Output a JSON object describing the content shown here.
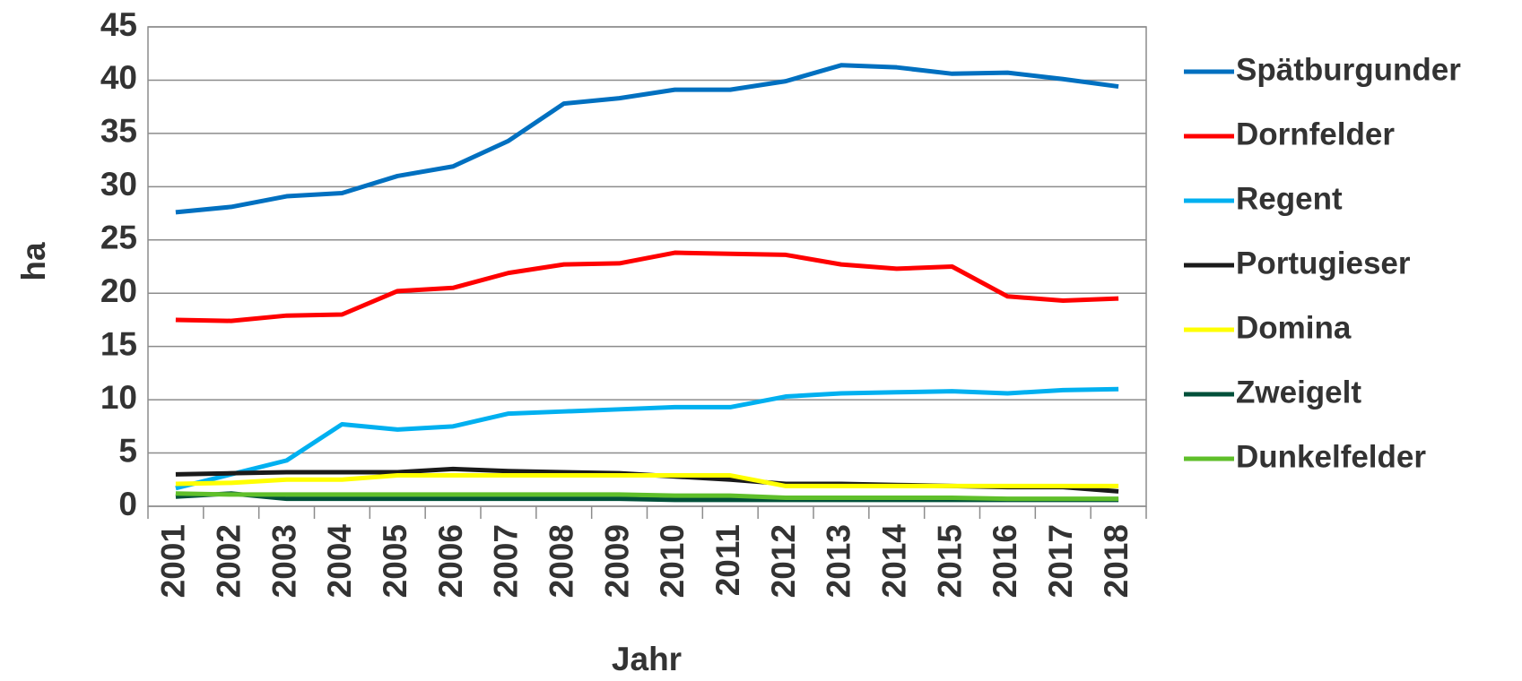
{
  "chart_data": {
    "type": "line",
    "x_label": "Jahr",
    "y_label": "ha",
    "categories": [
      "2001",
      "2002",
      "2003",
      "2004",
      "2005",
      "2006",
      "2007",
      "2008",
      "2009",
      "2010",
      "2011",
      "2012",
      "2013",
      "2014",
      "2015",
      "2016",
      "2017",
      "2018"
    ],
    "series": [
      {
        "name": "Spätburgunder",
        "color": "#0070c0",
        "values": [
          27.6,
          28.1,
          29.1,
          29.4,
          31,
          31.9,
          34.3,
          37.8,
          38.3,
          39.1,
          39.1,
          39.9,
          41.4,
          41.2,
          40.6,
          40.7,
          40.1,
          39.4
        ]
      },
      {
        "name": "Dornfelder",
        "color": "#ff0000",
        "values": [
          17.5,
          17.4,
          17.9,
          18.0,
          20.2,
          20.5,
          21.9,
          22.7,
          22.8,
          23.8,
          23.7,
          23.6,
          22.7,
          22.3,
          22.5,
          19.7,
          19.3,
          19.5
        ]
      },
      {
        "name": "Regent",
        "color": "#00b0f0",
        "values": [
          1.7,
          3.0,
          4.3,
          7.7,
          7.2,
          7.5,
          8.7,
          8.9,
          9.1,
          9.3,
          9.3,
          10.3,
          10.6,
          10.7,
          10.8,
          10.6,
          10.9,
          11.0
        ]
      },
      {
        "name": "Portugieser",
        "color": "#1a1a1a",
        "values": [
          3.0,
          3.1,
          3.2,
          3.2,
          3.2,
          3.5,
          3.3,
          3.2,
          3.1,
          2.8,
          2.5,
          2.1,
          2.1,
          2.0,
          1.9,
          1.8,
          1.8,
          1.4
        ]
      },
      {
        "name": "Domina",
        "color": "#ffff00",
        "values": [
          2.1,
          2.2,
          2.5,
          2.5,
          2.9,
          2.9,
          2.9,
          2.9,
          2.9,
          2.9,
          2.9,
          1.9,
          1.9,
          1.9,
          1.9,
          1.9,
          1.9,
          1.9
        ]
      },
      {
        "name": "Zweigelt",
        "color": "#00503a",
        "values": [
          0.9,
          1.2,
          0.7,
          0.7,
          0.7,
          0.7,
          0.7,
          0.7,
          0.7,
          0.6,
          0.6,
          0.6,
          0.6,
          0.6,
          0.6,
          0.6,
          0.6,
          0.6
        ]
      },
      {
        "name": "Dunkelfelder",
        "color": "#5fbf2a",
        "values": [
          1.2,
          1.1,
          1.1,
          1.1,
          1.1,
          1.1,
          1.1,
          1.1,
          1.1,
          1.0,
          1.0,
          0.8,
          0.8,
          0.8,
          0.8,
          0.7,
          0.7,
          0.7
        ]
      }
    ],
    "ylim": [
      0,
      45
    ],
    "yticks": [
      0,
      5,
      10,
      15,
      20,
      25,
      30,
      35,
      40,
      45
    ],
    "grid": true,
    "legend": "right"
  }
}
